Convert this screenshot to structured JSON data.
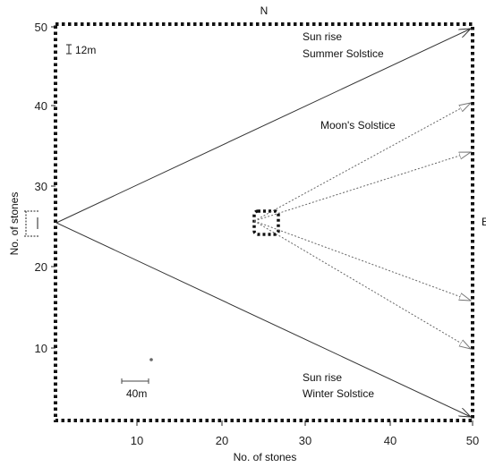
{
  "diagram": {
    "compass_north": "N",
    "compass_east": "E",
    "scale_vertical": "12m",
    "scale_horizontal": "40m",
    "labels": {
      "summer_line1": "Sun rise",
      "summer_line2": "Summer Solstice",
      "moon": "Moon's Solstice",
      "winter_line1": "Sun rise",
      "winter_line2": "Winter Solstice"
    },
    "x_axis_label": "No. of stones",
    "y_axis_label": "No. of stones",
    "x_ticks": [
      "10",
      "20",
      "30",
      "40",
      "50"
    ],
    "y_ticks": [
      "50",
      "40",
      "30",
      "20",
      "10"
    ]
  },
  "colors": {
    "line": "#333333",
    "border": "#111111",
    "dotted": "#666666"
  }
}
